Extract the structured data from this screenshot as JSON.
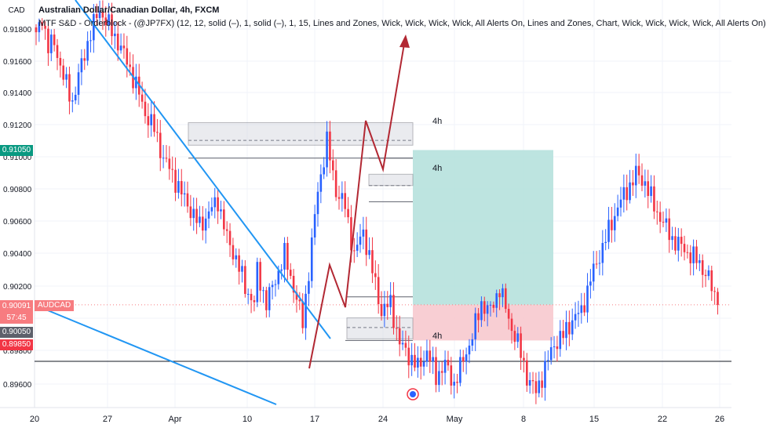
{
  "header": {
    "axis_unit": "CAD",
    "symbol_line": "Australian Dollar/Canadian Dollar, 4h, FXCM",
    "indicator_line": "MTF S&D - Orderblock - (@JP7FX) (12, 12, solid (–), 1, solid (–), 1, 15, Lines and Zones, Wick, Wick, Wick, Wick, All Alerts On, Lines and Zones, Chart, Wick, Wick, Wick, Wick, All Alerts On)"
  },
  "price_tags": {
    "zone_top": "0.91050",
    "current_price": "0.90091",
    "countdown": "57:45",
    "symbol": "AUDCAD",
    "zone_mid": "0.90050",
    "zone_low": "0.89850"
  },
  "zone_labels": [
    "4h",
    "4h",
    "4h"
  ],
  "colors": {
    "up": "#2962ff",
    "down": "#f23645",
    "trendline": "#2196f3",
    "projection": "#b22833",
    "target": "#b2dfdb",
    "stop": "#f7c9ce",
    "zone": "#d1d4dc"
  },
  "chart_data": {
    "type": "candlestick",
    "timeframe": "4h",
    "y_axis": {
      "ticks": [
        "0.91800",
        "0.91600",
        "0.91400",
        "0.91200",
        "0.91000",
        "0.90800",
        "0.90600",
        "0.90400",
        "0.90200",
        "0.90000",
        "0.89800",
        "0.89600"
      ],
      "range": [
        0.8947,
        0.9195
      ]
    },
    "x_axis": {
      "ticks": [
        "20",
        "27",
        "Apr",
        "10",
        "17",
        "24",
        "May",
        "8",
        "15",
        "22",
        "26"
      ]
    },
    "close_path": [
      [
        0,
        0.9175
      ],
      [
        2,
        0.9188
      ],
      [
        4,
        0.9168
      ],
      [
        6,
        0.9172
      ],
      [
        9,
        0.915
      ],
      [
        12,
        0.9135
      ],
      [
        15,
        0.9158
      ],
      [
        18,
        0.9178
      ],
      [
        21,
        0.9192
      ],
      [
        24,
        0.9182
      ],
      [
        27,
        0.9172
      ],
      [
        30,
        0.916
      ],
      [
        33,
        0.9145
      ],
      [
        36,
        0.9128
      ],
      [
        39,
        0.9118
      ],
      [
        42,
        0.91
      ],
      [
        45,
        0.909
      ],
      [
        48,
        0.9078
      ],
      [
        51,
        0.9068
      ],
      [
        54,
        0.9058
      ],
      [
        57,
        0.9066
      ],
      [
        60,
        0.9074
      ],
      [
        63,
        0.905
      ],
      [
        66,
        0.9038
      ],
      [
        69,
        0.902
      ],
      [
        72,
        0.901
      ],
      [
        73,
        0.903
      ],
      [
        76,
        0.901
      ],
      [
        79,
        0.9025
      ],
      [
        82,
        0.904
      ],
      [
        85,
        0.902
      ],
      [
        88,
        0.8998
      ],
      [
        90,
        0.903
      ],
      [
        93,
        0.908
      ],
      [
        96,
        0.911
      ],
      [
        99,
        0.908
      ],
      [
        102,
        0.907
      ],
      [
        105,
        0.904
      ],
      [
        108,
        0.9055
      ],
      [
        111,
        0.903
      ],
      [
        114,
        0.9005
      ],
      [
        117,
        0.901
      ],
      [
        120,
        0.8985
      ],
      [
        123,
        0.8978
      ],
      [
        126,
        0.897
      ],
      [
        129,
        0.898
      ],
      [
        132,
        0.8965
      ],
      [
        135,
        0.8972
      ],
      [
        138,
        0.896
      ],
      [
        141,
        0.8975
      ],
      [
        144,
        0.899
      ],
      [
        147,
        0.901
      ],
      [
        150,
        0.9005
      ],
      [
        153,
        0.902
      ],
      [
        156,
        0.9
      ],
      [
        159,
        0.8985
      ],
      [
        162,
        0.8965
      ],
      [
        165,
        0.8955
      ],
      [
        168,
        0.897
      ],
      [
        171,
        0.8985
      ],
      [
        174,
        0.899
      ],
      [
        177,
        0.9
      ],
      [
        180,
        0.9005
      ],
      [
        183,
        0.9025
      ],
      [
        186,
        0.904
      ],
      [
        189,
        0.9055
      ],
      [
        192,
        0.907
      ],
      [
        195,
        0.908
      ],
      [
        198,
        0.909
      ],
      [
        201,
        0.9085
      ],
      [
        204,
        0.907
      ],
      [
        207,
        0.906
      ],
      [
        210,
        0.905
      ],
      [
        213,
        0.9045
      ],
      [
        216,
        0.904
      ],
      [
        219,
        0.9035
      ],
      [
        222,
        0.9025
      ],
      [
        225,
        0.9009
      ]
    ]
  }
}
